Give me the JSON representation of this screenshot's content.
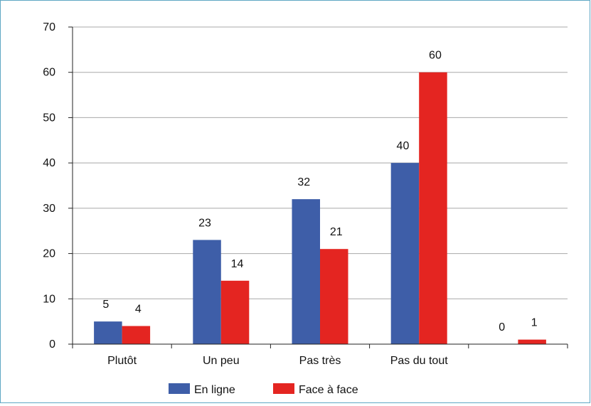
{
  "chart_data": {
    "type": "bar",
    "categories": [
      "Plutôt",
      "Un peu",
      "Pas très",
      "Pas du tout",
      ""
    ],
    "series": [
      {
        "name": "En ligne",
        "values": [
          5,
          23,
          32,
          40,
          0
        ],
        "color": "#3e5ea8"
      },
      {
        "name": "Face à face",
        "values": [
          4,
          14,
          21,
          60,
          1
        ],
        "color": "#e42521"
      }
    ],
    "ylim": [
      0,
      70
    ],
    "yticks": [
      0,
      10,
      20,
      30,
      40,
      50,
      60,
      70
    ],
    "grid": true,
    "legend_position": "bottom",
    "title": "",
    "xlabel": "",
    "ylabel": ""
  }
}
